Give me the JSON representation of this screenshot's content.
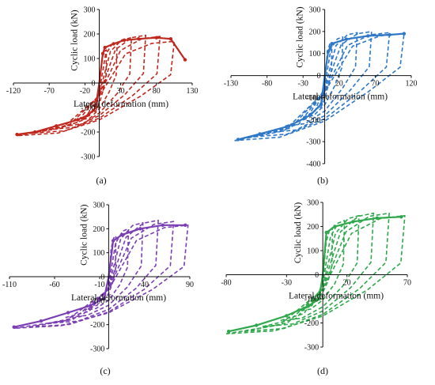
{
  "chart_data": [
    {
      "type": "line",
      "panel": "(a)",
      "color": "#c0281e",
      "xlabel": "Lateral deformation (mm)",
      "ylabel": "Cyclic load (kN)",
      "xlim": [
        -120,
        130
      ],
      "ylim": [
        -300,
        300
      ],
      "xticks": [
        "-120",
        "-70",
        "-20",
        "30",
        "80",
        "130"
      ],
      "yticks": [
        "300",
        "200",
        "100",
        "0",
        "-100",
        "-200",
        "-300"
      ],
      "peak_points": [
        [
          5,
          120
        ],
        [
          8,
          145
        ],
        [
          20,
          160
        ],
        [
          35,
          175
        ],
        [
          55,
          180
        ],
        [
          80,
          185
        ],
        [
          100,
          180
        ],
        [
          120,
          95
        ],
        [
          -5,
          -100
        ],
        [
          -15,
          -130
        ],
        [
          -30,
          -150
        ],
        [
          -60,
          -175
        ],
        [
          -90,
          -200
        ],
        [
          -115,
          -210
        ]
      ],
      "loops": [
        {
          "amp_pos": 10,
          "amp_neg": -10,
          "load_pos": 135,
          "load_neg": -120
        },
        {
          "amp_pos": 25,
          "amp_neg": -25,
          "load_pos": 165,
          "load_neg": -150
        },
        {
          "amp_pos": 45,
          "amp_neg": -45,
          "load_pos": 185,
          "load_neg": -175
        },
        {
          "amp_pos": 65,
          "amp_neg": -70,
          "load_pos": 195,
          "load_neg": -190
        },
        {
          "amp_pos": 85,
          "amp_neg": -95,
          "load_pos": 190,
          "load_neg": -205
        },
        {
          "amp_pos": 105,
          "amp_neg": -115,
          "load_pos": 170,
          "load_neg": -215
        }
      ]
    },
    {
      "type": "line",
      "panel": "(b)",
      "color": "#2f78c8",
      "xlabel": "Lateral deformation (mm)",
      "ylabel": "Cyclic load (kN)",
      "xlim": [
        -130,
        120
      ],
      "ylim": [
        -400,
        300
      ],
      "xticks": [
        "-130",
        "-80",
        "-30",
        "20",
        "70",
        "120"
      ],
      "yticks": [
        "300",
        "200",
        "100",
        "0",
        "-100",
        "-200",
        "-300",
        "-400"
      ],
      "peak_points": [
        [
          5,
          110
        ],
        [
          10,
          145
        ],
        [
          30,
          165
        ],
        [
          60,
          180
        ],
        [
          90,
          185
        ],
        [
          110,
          190
        ],
        [
          -5,
          -130
        ],
        [
          -20,
          -180
        ],
        [
          -50,
          -230
        ],
        [
          -90,
          -265
        ],
        [
          -120,
          -290
        ]
      ],
      "loops": [
        {
          "amp_pos": 10,
          "amp_neg": -10,
          "load_pos": 150,
          "load_neg": -150
        },
        {
          "amp_pos": 25,
          "amp_neg": -30,
          "load_pos": 175,
          "load_neg": -190
        },
        {
          "amp_pos": 45,
          "amp_neg": -55,
          "load_pos": 195,
          "load_neg": -230
        },
        {
          "amp_pos": 65,
          "amp_neg": -80,
          "load_pos": 200,
          "load_neg": -260
        },
        {
          "amp_pos": 90,
          "amp_neg": -105,
          "load_pos": 195,
          "load_neg": -280
        },
        {
          "amp_pos": 110,
          "amp_neg": -125,
          "load_pos": 190,
          "load_neg": -295
        }
      ]
    },
    {
      "type": "line",
      "panel": "(c)",
      "color": "#7b3fb4",
      "xlabel": "Lateral deformation (mm)",
      "ylabel": "Cyclic load (kN)",
      "xlim": [
        -110,
        90
      ],
      "ylim": [
        -300,
        300
      ],
      "xticks": [
        "-110",
        "-60",
        "-10",
        "40",
        "90"
      ],
      "yticks": [
        "300",
        "200",
        "100",
        "0",
        "-100",
        "-200",
        "-300"
      ],
      "peak_points": [
        [
          5,
          150
        ],
        [
          15,
          175
        ],
        [
          35,
          200
        ],
        [
          60,
          215
        ],
        [
          85,
          215
        ],
        [
          -5,
          -90
        ],
        [
          -20,
          -120
        ],
        [
          -45,
          -150
        ],
        [
          -75,
          -185
        ],
        [
          -105,
          -210
        ]
      ],
      "loops": [
        {
          "amp_pos": 8,
          "amp_neg": -10,
          "load_pos": 170,
          "load_neg": -100
        },
        {
          "amp_pos": 22,
          "amp_neg": -28,
          "load_pos": 200,
          "load_neg": -140
        },
        {
          "amp_pos": 38,
          "amp_neg": -48,
          "load_pos": 225,
          "load_neg": -170
        },
        {
          "amp_pos": 55,
          "amp_neg": -68,
          "load_pos": 235,
          "load_neg": -195
        },
        {
          "amp_pos": 72,
          "amp_neg": -88,
          "load_pos": 230,
          "load_neg": -210
        },
        {
          "amp_pos": 88,
          "amp_neg": -105,
          "load_pos": 215,
          "load_neg": -215
        }
      ]
    },
    {
      "type": "line",
      "panel": "(d)",
      "color": "#2ea84a",
      "xlabel": "Lateral deformation (mm)",
      "ylabel": "Cyclic load (kN)",
      "xlim": [
        -80,
        70
      ],
      "ylim": [
        -300,
        300
      ],
      "xticks": [
        "-80",
        "-30",
        "20",
        "70"
      ],
      "yticks": [
        "300",
        "200",
        "100",
        "0",
        "-100",
        "-200",
        "-300"
      ],
      "peak_points": [
        [
          3,
          175
        ],
        [
          10,
          200
        ],
        [
          25,
          220
        ],
        [
          45,
          235
        ],
        [
          65,
          240
        ],
        [
          -3,
          -100
        ],
        [
          -12,
          -130
        ],
        [
          -30,
          -170
        ],
        [
          -55,
          -210
        ],
        [
          -78,
          -235
        ]
      ],
      "loops": [
        {
          "amp_pos": 8,
          "amp_neg": -8,
          "load_pos": 195,
          "load_neg": -105
        },
        {
          "amp_pos": 18,
          "amp_neg": -20,
          "load_pos": 225,
          "load_neg": -150
        },
        {
          "amp_pos": 30,
          "amp_neg": -35,
          "load_pos": 245,
          "load_neg": -190
        },
        {
          "amp_pos": 42,
          "amp_neg": -50,
          "load_pos": 255,
          "load_neg": -215
        },
        {
          "amp_pos": 55,
          "amp_neg": -65,
          "load_pos": 255,
          "load_neg": -235
        },
        {
          "amp_pos": 68,
          "amp_neg": -80,
          "load_pos": 245,
          "load_neg": -245
        }
      ]
    }
  ]
}
